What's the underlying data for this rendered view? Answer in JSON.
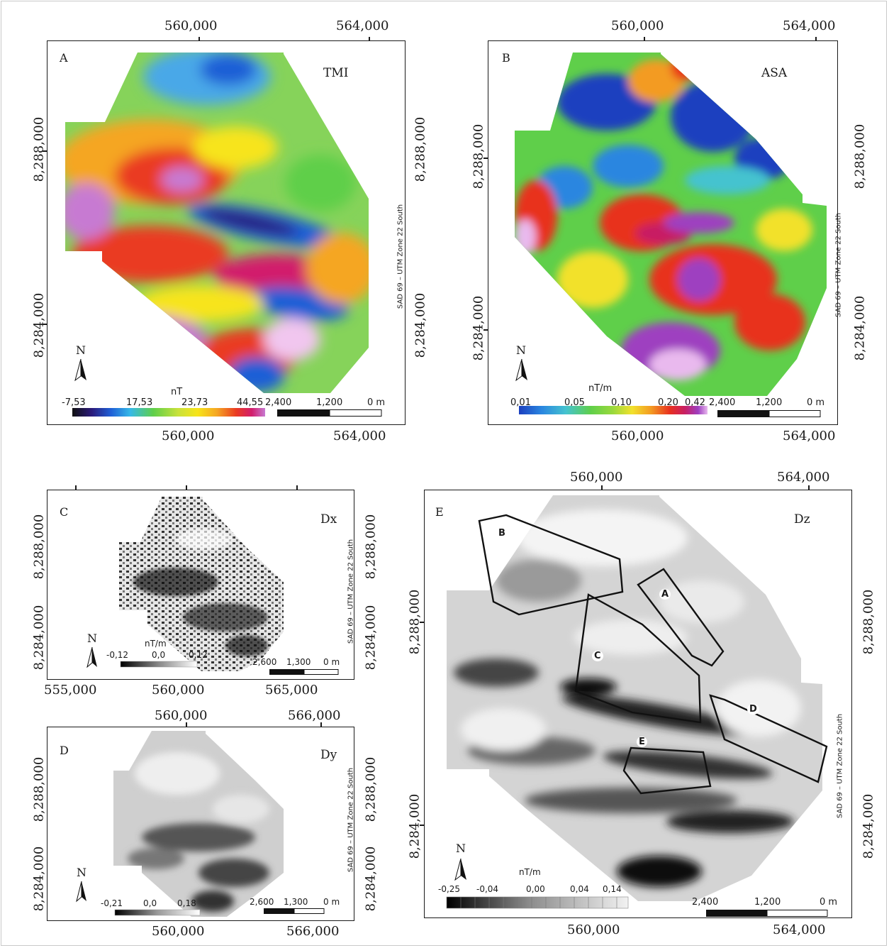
{
  "panels": {
    "A": {
      "letter": "A",
      "name": "TMI",
      "top_ticks": [
        "560,000",
        "564,000"
      ],
      "bottom_ticks": [
        "560,000",
        "564,000"
      ],
      "left_ticks": [
        "8,288,000",
        "8,284,000"
      ],
      "right_ticks": [
        "8,288,000",
        "8,284,000"
      ],
      "crs": "SAD 69 – UTM Zone 22 South",
      "north": "N",
      "legend_unit": "nT",
      "legend_values": [
        "-7,53",
        "17,53",
        "23,73",
        "44,55"
      ],
      "scale_labels": [
        "2,400",
        "1,200",
        "0 m"
      ]
    },
    "B": {
      "letter": "B",
      "name": "ASA",
      "top_ticks": [
        "560,000",
        "564,000"
      ],
      "bottom_ticks": [
        "560,000",
        "564,000"
      ],
      "left_ticks": [
        "8,288,000",
        "8,284,000"
      ],
      "right_ticks": [
        "8,288,000",
        "8,284,000"
      ],
      "crs": "SAD 69 – UTM Zone 22 South",
      "north": "N",
      "legend_unit": "nT/m",
      "legend_values": [
        "0,01",
        "0,05",
        "0,10",
        "0,20",
        "0,42"
      ],
      "scale_labels": [
        "2,400",
        "1,200",
        "0 m"
      ]
    },
    "C": {
      "letter": "C",
      "name": "Dx",
      "bottom_ticks": [
        "555,000",
        "560,000",
        "565,000"
      ],
      "left_ticks": [
        "8,288,000",
        "8,284,000"
      ],
      "right_ticks": [
        "8,288,000",
        "8,284,000"
      ],
      "crs": "SAD 69 – UTM Zone 22 South",
      "north": "N",
      "legend_unit": "nT/m",
      "legend_values": [
        "-0,12",
        "0,0",
        "0,12"
      ],
      "scale_labels": [
        "2,600",
        "1,300",
        "0 m"
      ]
    },
    "D": {
      "letter": "D",
      "name": "Dy",
      "top_ticks": [
        "560,000",
        "566,000"
      ],
      "bottom_ticks": [
        "560,000",
        "566,000"
      ],
      "left_ticks": [
        "8,288,000",
        "8,284,000"
      ],
      "right_ticks": [
        "8,288,000",
        "8,284,000"
      ],
      "crs": "SAD 69 – UTM Zone 22 South",
      "north": "N",
      "legend_values": [
        "-0,21",
        "0,0",
        "0,18"
      ],
      "scale_labels": [
        "2,600",
        "1,300",
        "0 m"
      ]
    },
    "E": {
      "letter": "E",
      "name": "Dz",
      "top_ticks": [
        "560,000",
        "564,000"
      ],
      "bottom_ticks": [
        "560,000",
        "564,000"
      ],
      "left_ticks": [
        "8,288,000",
        "8,284,000"
      ],
      "right_ticks": [
        "8,288,000",
        "8,284,000"
      ],
      "crs": "SAD 69 – UTM Zone 22 South",
      "north": "N",
      "legend_unit": "nT/m",
      "legend_values": [
        "-0,25",
        "-0,04",
        "0,00",
        "0,04",
        "0,14"
      ],
      "scale_labels": [
        "2,400",
        "1,200",
        "0 m"
      ],
      "zones": [
        "A",
        "B",
        "C",
        "D",
        "E"
      ]
    }
  },
  "colors": {
    "tmi_ramp": [
      "#2b1a7a",
      "#1f5fd6",
      "#35b9e8",
      "#5fcf4a",
      "#c9e23a",
      "#f7e41a",
      "#f5a623",
      "#ea3b22",
      "#d21d6c",
      "#c77ad2",
      "#f1c6ef"
    ],
    "asa_ramp": [
      "#1b3fbf",
      "#2a86e0",
      "#45c3cf",
      "#5fcf4a",
      "#9bd93c",
      "#f2e12c",
      "#f39b22",
      "#e8301f",
      "#c81f63",
      "#9e3fc0",
      "#e9b9ee"
    ],
    "gray_ramp": [
      "#000000",
      "#4a4a4a",
      "#9a9a9a",
      "#e4e4e4",
      "#ffffff"
    ]
  }
}
